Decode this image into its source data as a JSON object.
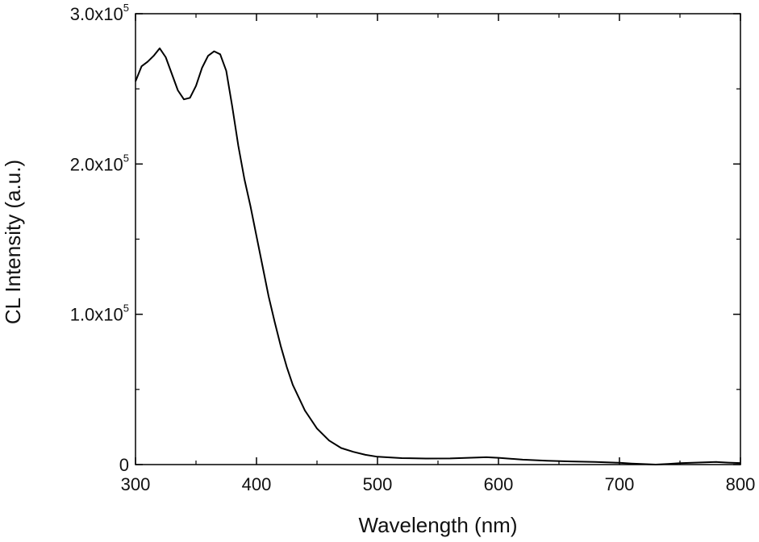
{
  "chart_data": {
    "type": "line",
    "title": "",
    "xlabel": "Wavelength (nm)",
    "ylabel": "CL Intensity (a.u.)",
    "xlim": [
      300,
      800
    ],
    "ylim": [
      0,
      300000
    ],
    "grid": false,
    "legend": "none",
    "line_color": "#000000",
    "x_ticks": [
      300,
      400,
      500,
      600,
      700,
      800
    ],
    "x_tick_labels": [
      "300",
      "400",
      "500",
      "600",
      "700",
      "800"
    ],
    "y_ticks": [
      0,
      100000,
      200000,
      300000
    ],
    "y_tick_labels": [
      {
        "mantissa": "0",
        "exponent": ""
      },
      {
        "mantissa": "1.0x10",
        "exponent": "5"
      },
      {
        "mantissa": "2.0x10",
        "exponent": "5"
      },
      {
        "mantissa": "3.0x10",
        "exponent": "5"
      }
    ],
    "series": [
      {
        "x": [
          300,
          305,
          310,
          315,
          320,
          325,
          330,
          335,
          340,
          345,
          350,
          355,
          360,
          365,
          370,
          375,
          380,
          385,
          390,
          395,
          400,
          405,
          410,
          415,
          420,
          425,
          430,
          440,
          450,
          460,
          470,
          480,
          490,
          500,
          520,
          540,
          560,
          580,
          590,
          600,
          620,
          640,
          660,
          680,
          700,
          710,
          720,
          730,
          740,
          750,
          760,
          770,
          780,
          790,
          800
        ],
        "y": [
          255000,
          265000,
          268000,
          272000,
          277000,
          271000,
          260000,
          249000,
          243000,
          244000,
          252000,
          264000,
          272000,
          275000,
          273000,
          262000,
          238000,
          212000,
          190000,
          172000,
          152000,
          132000,
          112000,
          95000,
          79000,
          65000,
          53000,
          36000,
          24000,
          16000,
          11000,
          8500,
          6500,
          5200,
          4300,
          4000,
          4100,
          4600,
          4900,
          4500,
          3300,
          2600,
          2100,
          1700,
          1200,
          700,
          300,
          0,
          400,
          900,
          1200,
          1500,
          1700,
          1300,
          1000
        ]
      }
    ]
  }
}
